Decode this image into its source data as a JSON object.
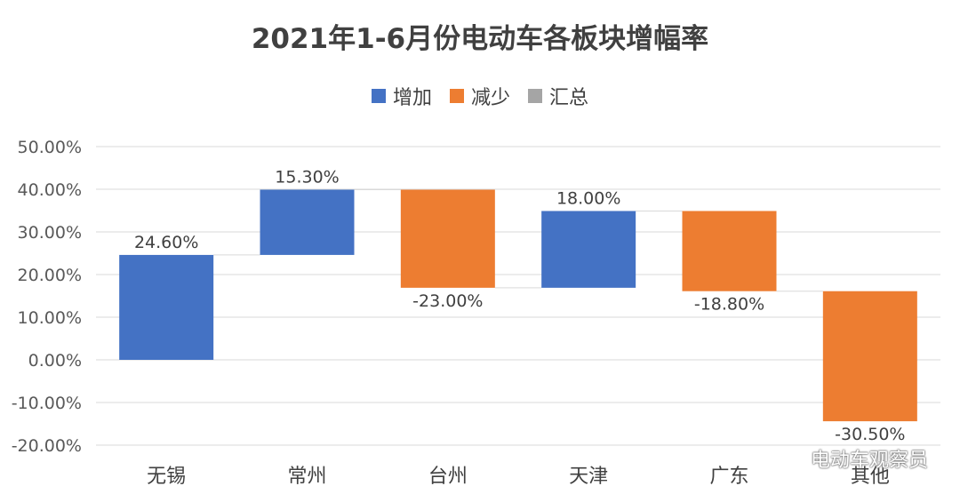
{
  "title": "2021年1-6月份电动车各板块增幅率",
  "legend": [
    {
      "label": "增加",
      "color": "#4472C4"
    },
    {
      "label": "减少",
      "color": "#ED7D31"
    },
    {
      "label": "汇总",
      "color": "#A5A5A5"
    }
  ],
  "watermark": {
    "text": "电动车观察员",
    "icon": "wechat-icon"
  },
  "chart_data": {
    "type": "bar",
    "subtype": "waterfall",
    "title": "2021年1-6月份电动车各板块增幅率",
    "categories": [
      "无锡",
      "常州",
      "台州",
      "天津",
      "广东",
      "其他"
    ],
    "values": [
      24.6,
      15.3,
      -23.0,
      18.0,
      -18.8,
      -30.5
    ],
    "data_labels": [
      "24.60%",
      "15.30%",
      "-23.00%",
      "18.00%",
      "-18.80%",
      "-30.50%"
    ],
    "series": [
      {
        "name": "增加",
        "color": "#4472C4"
      },
      {
        "name": "减少",
        "color": "#ED7D31"
      },
      {
        "name": "汇总",
        "color": "#A5A5A5"
      }
    ],
    "ylim": [
      -20,
      50
    ],
    "yticks": [
      50,
      40,
      30,
      20,
      10,
      0,
      -10,
      -20
    ],
    "ytick_labels": [
      "50.00%",
      "40.00%",
      "30.00%",
      "20.00%",
      "10.00%",
      "0.00%",
      "-10.00%",
      "-20.00%"
    ],
    "grid": true,
    "legend_position": "top"
  }
}
